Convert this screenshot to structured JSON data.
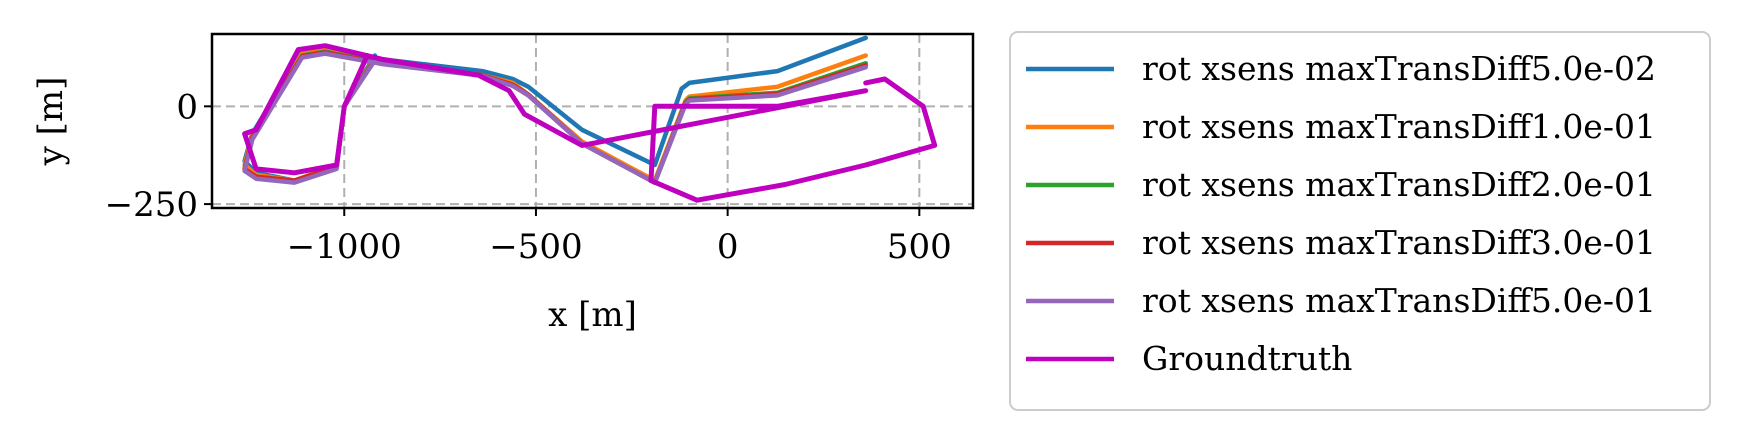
{
  "chart_data": {
    "type": "line",
    "title": "",
    "xlabel": "x [m]",
    "ylabel": "y [m]",
    "xlim": [
      -1345,
      640
    ],
    "ylim": [
      -260,
      185
    ],
    "xticks": [
      {
        "value": -1000,
        "label": "−1000"
      },
      {
        "value": -500,
        "label": "−500"
      },
      {
        "value": 0,
        "label": "0"
      },
      {
        "value": 500,
        "label": "500"
      }
    ],
    "yticks": [
      {
        "value": 0,
        "label": "0"
      },
      {
        "value": -250,
        "label": "−250"
      }
    ],
    "grid": true,
    "grid_style": "dashed",
    "legend_position": "outside-right",
    "series": [
      {
        "name": "rot xsens maxTransDiff5.0e-02",
        "color": "#1f77b4",
        "x": [
          360,
          130,
          -100,
          -120,
          -190,
          -380,
          -520,
          -560,
          -640,
          -900,
          -1050,
          -1110,
          -1240,
          -1260,
          -1230,
          -1130,
          -1020,
          -1000,
          -920
        ],
        "y": [
          175,
          90,
          60,
          45,
          -150,
          -60,
          50,
          70,
          90,
          120,
          150,
          140,
          -70,
          -140,
          -170,
          -190,
          -150,
          0,
          130
        ]
      },
      {
        "name": "rot xsens maxTransDiff1.0e-01",
        "color": "#ff7f0e",
        "x": [
          360,
          130,
          -100,
          -110,
          -190,
          -380,
          -520,
          -560,
          -640,
          -900,
          -1050,
          -1110,
          -1240,
          -1260,
          -1230,
          -1130,
          -1020,
          -1000,
          -920
        ],
        "y": [
          130,
          50,
          25,
          15,
          -190,
          -90,
          30,
          60,
          80,
          110,
          145,
          135,
          -75,
          -150,
          -175,
          -190,
          -150,
          0,
          125
        ]
      },
      {
        "name": "rot xsens maxTransDiff2.0e-01",
        "color": "#2ca02c",
        "x": [
          360,
          130,
          -100,
          -110,
          -190,
          -380,
          -520,
          -560,
          -640,
          -900,
          -1050,
          -1110,
          -1240,
          -1260,
          -1230,
          -1130,
          -1020,
          -1000,
          -920
        ],
        "y": [
          110,
          35,
          20,
          10,
          -195,
          -95,
          30,
          55,
          80,
          110,
          140,
          130,
          -80,
          -160,
          -180,
          -190,
          -155,
          0,
          122
        ]
      },
      {
        "name": "rot xsens maxTransDiff3.0e-01",
        "color": "#d62728",
        "x": [
          360,
          130,
          -100,
          -110,
          -190,
          -380,
          -520,
          -560,
          -640,
          -900,
          -1050,
          -1110,
          -1240,
          -1260,
          -1230,
          -1130,
          -1020,
          -1000,
          -920
        ],
        "y": [
          105,
          32,
          18,
          8,
          -195,
          -95,
          30,
          55,
          80,
          110,
          138,
          128,
          -80,
          -160,
          -180,
          -190,
          -155,
          0,
          120
        ]
      },
      {
        "name": "rot xsens maxTransDiff5.0e-01",
        "color": "#9467bd",
        "x": [
          360,
          130,
          -100,
          -110,
          -190,
          -380,
          -520,
          -560,
          -640,
          -900,
          -1050,
          -1110,
          -1240,
          -1260,
          -1230,
          -1130,
          -1020,
          -1000,
          -920
        ],
        "y": [
          100,
          28,
          15,
          5,
          -195,
          -95,
          28,
          52,
          78,
          108,
          135,
          125,
          -85,
          -165,
          -185,
          -195,
          -160,
          0,
          118
        ]
      },
      {
        "name": "Groundtruth",
        "color": "#bf00bf",
        "x": [
          360,
          410,
          510,
          540,
          360,
          150,
          -80,
          -200,
          -190,
          -110,
          130,
          360,
          -380,
          -530,
          -570,
          -650,
          -900,
          -1050,
          -1120,
          -1230,
          -1260,
          -1230,
          -1130,
          -1020,
          -1000,
          -940
        ],
        "y": [
          60,
          70,
          0,
          -100,
          -150,
          -200,
          -240,
          -190,
          0,
          0,
          0,
          40,
          -100,
          -20,
          40,
          80,
          120,
          155,
          145,
          -60,
          -70,
          -160,
          -170,
          -150,
          0,
          130
        ]
      }
    ]
  }
}
